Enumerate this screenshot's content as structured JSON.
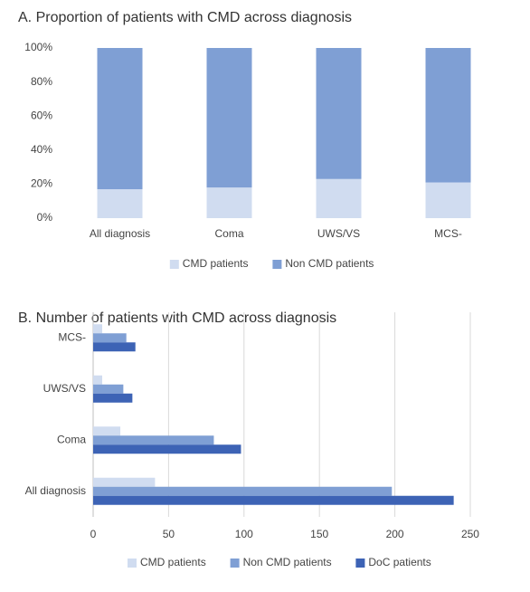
{
  "chart_data": [
    {
      "type": "bar",
      "stacked": true,
      "orientation": "vertical",
      "title": "A. Proportion of patients with CMD across diagnosis",
      "categories": [
        "All diagnosis",
        "Coma",
        "UWS/VS",
        "MCS-"
      ],
      "series": [
        {
          "name": "CMD patients",
          "color": "#d0dcf0",
          "values": [
            17,
            18,
            23,
            21
          ]
        },
        {
          "name": "Non CMD patients",
          "color": "#7f9fd4",
          "values": [
            83,
            82,
            77,
            79
          ]
        }
      ],
      "ylim": [
        0,
        100
      ],
      "yticks": [
        {
          "value": 0,
          "label": "0%"
        },
        {
          "value": 20,
          "label": "20%"
        },
        {
          "value": 40,
          "label": "40%"
        },
        {
          "value": 60,
          "label": "60%"
        },
        {
          "value": 80,
          "label": "80%"
        },
        {
          "value": 100,
          "label": "100%"
        }
      ],
      "grid": false,
      "legend": "bottom"
    },
    {
      "type": "bar",
      "stacked": false,
      "orientation": "horizontal",
      "title": "B. Number of patients with CMD across diagnosis",
      "categories": [
        "All diagnosis",
        "Coma",
        "UWS/VS",
        "MCS-"
      ],
      "series": [
        {
          "name": "CMD patients",
          "color": "#d0dcf0",
          "values": [
            41,
            18,
            6,
            6
          ]
        },
        {
          "name": "Non CMD patients",
          "color": "#7f9fd4",
          "values": [
            198,
            80,
            20,
            22
          ]
        },
        {
          "name": "DoC patients",
          "color": "#3d63b5",
          "values": [
            239,
            98,
            26,
            28
          ]
        }
      ],
      "xlim": [
        0,
        265
      ],
      "xticks": [
        0,
        50,
        100,
        150,
        200,
        250
      ],
      "grid": true,
      "legend": "bottom"
    }
  ]
}
